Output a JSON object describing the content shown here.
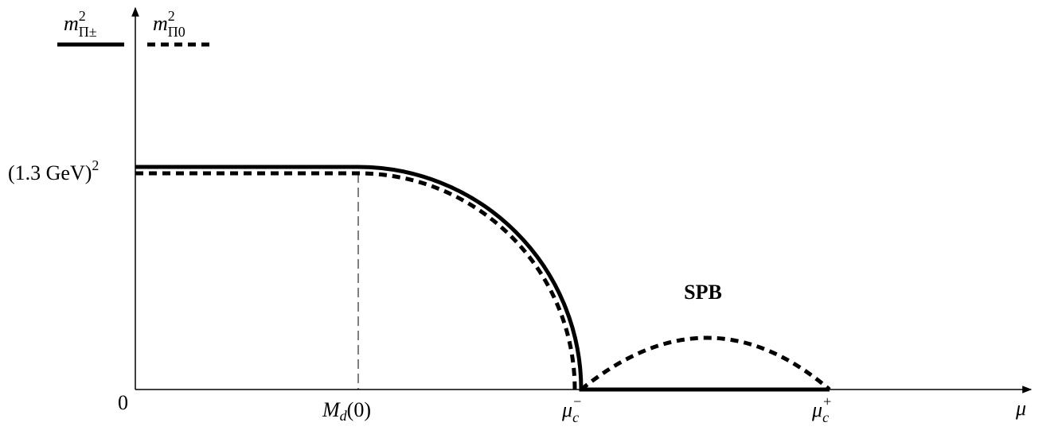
{
  "legend": [
    {
      "symbol": "m",
      "sup": "2",
      "sub": "Π±"
    },
    {
      "symbol": "m",
      "sup": "2",
      "sub": "Π0"
    }
  ],
  "y_axis": {
    "tick_top": {
      "text": "(1.3 GeV)",
      "sup": "2"
    },
    "origin": "0"
  },
  "x_axis": {
    "ticks": [
      {
        "symbol": "M",
        "sub": "d",
        "rest": "(0)"
      },
      {
        "symbol": "μ",
        "sub": "c",
        "sup": "−"
      },
      {
        "symbol": "μ",
        "sub": "c",
        "sup": "+"
      }
    ],
    "label": "μ"
  },
  "annotation": "SPB"
}
